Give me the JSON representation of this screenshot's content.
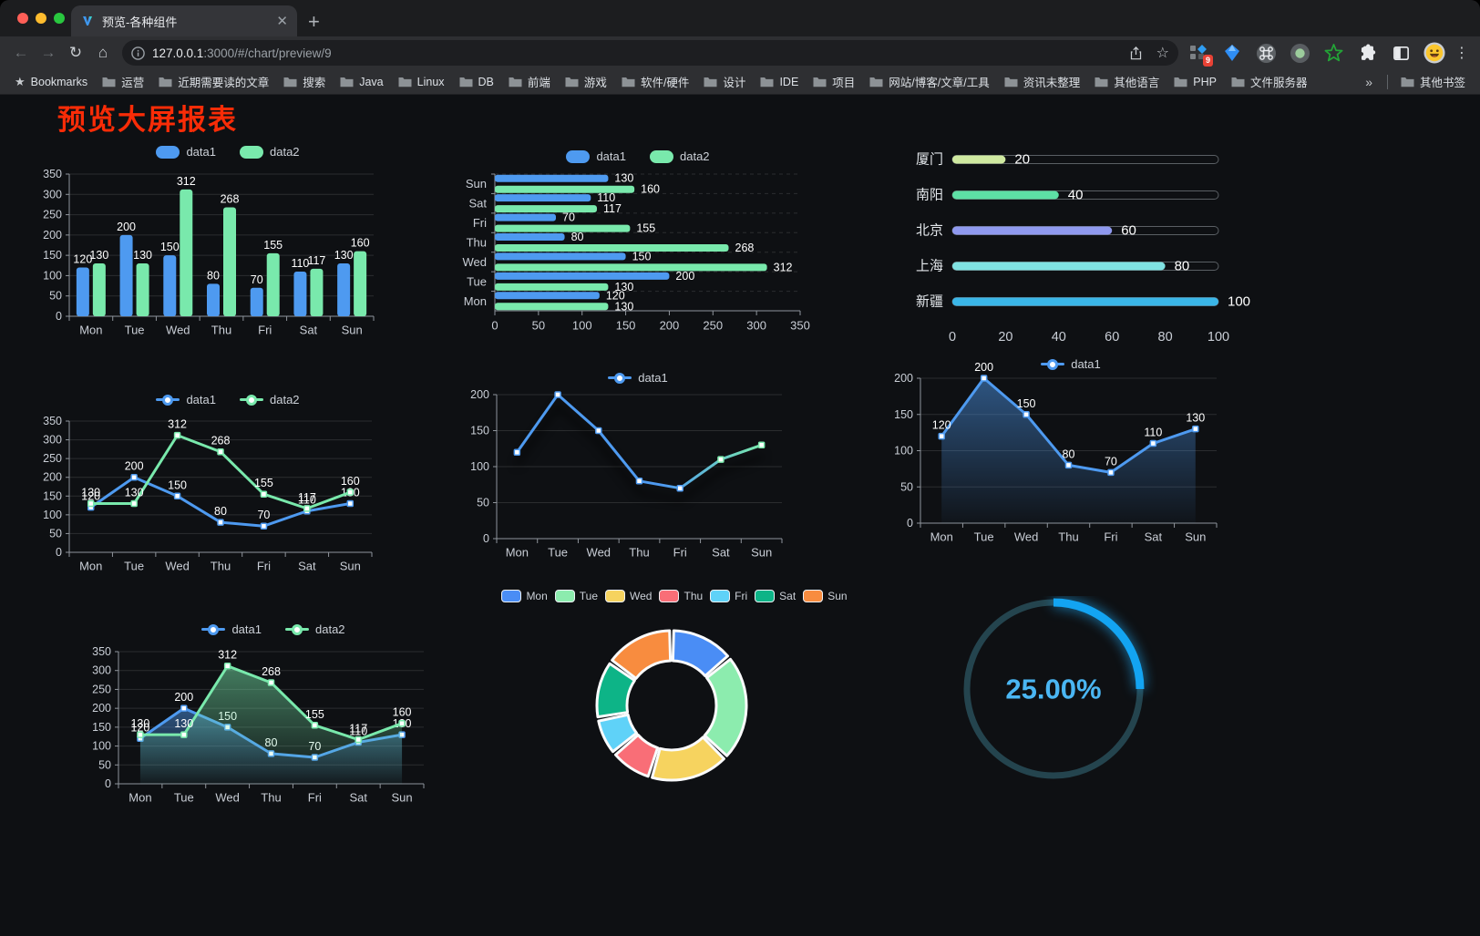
{
  "browser": {
    "tab_title": "预览-各种组件",
    "url_host": "127.0.0.1",
    "url_rest": ":3000/#/chart/preview/9",
    "bookmarks_label": "Bookmarks",
    "bookmarks": [
      "运营",
      "近期需要读的文章",
      "搜索",
      "Java",
      "Linux",
      "DB",
      "前端",
      "游戏",
      "软件/硬件",
      "设计",
      "IDE",
      "项目",
      "网站/博客/文章/工具",
      "资讯未整理",
      "其他语言",
      "PHP",
      "文件服务器"
    ],
    "overflow_chevron": "»",
    "other_bookmarks": "其他书签",
    "ext_badge": "9"
  },
  "page": {
    "title": "预览大屏报表",
    "title_color": "#f92c07"
  },
  "chart_data": [
    {
      "id": "bar-vertical",
      "type": "bar",
      "categories": [
        "Mon",
        "Tue",
        "Wed",
        "Thu",
        "Fri",
        "Sat",
        "Sun"
      ],
      "series": [
        {
          "name": "data1",
          "color": "#4e9af0",
          "values": [
            120,
            200,
            150,
            80,
            70,
            110,
            130
          ]
        },
        {
          "name": "data2",
          "color": "#79e9ac",
          "values": [
            130,
            130,
            312,
            268,
            155,
            117,
            160
          ]
        }
      ],
      "ylim": [
        0,
        350
      ],
      "ystep": 50,
      "legend_position": "top",
      "grid": true
    },
    {
      "id": "bar-horizontal",
      "type": "hbar",
      "categories": [
        "Mon",
        "Tue",
        "Wed",
        "Thu",
        "Fri",
        "Sat",
        "Sun"
      ],
      "row_order_top_to_bottom": [
        "Sun",
        "Sat",
        "Fri",
        "Thu",
        "Wed",
        "Tue",
        "Mon"
      ],
      "series": [
        {
          "name": "data1",
          "color": "#4e9af0",
          "values": [
            120,
            200,
            150,
            80,
            70,
            110,
            130
          ]
        },
        {
          "name": "data2",
          "color": "#79e9ac",
          "values": [
            130,
            130,
            312,
            268,
            155,
            117,
            160
          ]
        }
      ],
      "xlim": [
        0,
        350
      ],
      "xstep": 50,
      "legend_position": "top",
      "grid": true
    },
    {
      "id": "progress-bars",
      "type": "progress",
      "items": [
        {
          "label": "厦门",
          "value": 20,
          "color": "#cfe9a0"
        },
        {
          "label": "南阳",
          "value": 40,
          "color": "#5ddfa5"
        },
        {
          "label": "北京",
          "value": 60,
          "color": "#8f99ef"
        },
        {
          "label": "上海",
          "value": 80,
          "color": "#80e2e2"
        },
        {
          "label": "新疆",
          "value": 100,
          "color": "#3ab6e8"
        }
      ],
      "xlim": [
        0,
        100
      ],
      "xticks": [
        0,
        20,
        40,
        60,
        80,
        100
      ]
    },
    {
      "id": "line-two-series",
      "type": "line",
      "categories": [
        "Mon",
        "Tue",
        "Wed",
        "Thu",
        "Fri",
        "Sat",
        "Sun"
      ],
      "series": [
        {
          "name": "data1",
          "color": "#4e9af0",
          "values": [
            120,
            200,
            150,
            80,
            70,
            110,
            130
          ]
        },
        {
          "name": "data2",
          "color": "#79e9ac",
          "values": [
            130,
            130,
            312,
            268,
            155,
            117,
            160
          ]
        }
      ],
      "ylim": [
        0,
        350
      ],
      "ystep": 50,
      "labels": true,
      "legend_position": "top",
      "grid": true
    },
    {
      "id": "line-gradient",
      "type": "line",
      "categories": [
        "Mon",
        "Tue",
        "Wed",
        "Thu",
        "Fri",
        "Sat",
        "Sun"
      ],
      "series": [
        {
          "name": "data1",
          "gradient": [
            "#4e9af0",
            "#79e9ac"
          ],
          "values": [
            120,
            200,
            150,
            80,
            70,
            110,
            130
          ]
        }
      ],
      "ylim": [
        0,
        200
      ],
      "ystep": 50,
      "labels": false,
      "shadow": true,
      "legend_position": "top",
      "grid": true
    },
    {
      "id": "line-area-single",
      "type": "line",
      "categories": [
        "Mon",
        "Tue",
        "Wed",
        "Thu",
        "Fri",
        "Sat",
        "Sun"
      ],
      "series": [
        {
          "name": "data1",
          "color": "#4e9af0",
          "area": true,
          "values": [
            120,
            200,
            150,
            80,
            70,
            110,
            130
          ]
        }
      ],
      "ylim": [
        0,
        200
      ],
      "ystep": 50,
      "labels": true,
      "legend_position": "top",
      "grid": true
    },
    {
      "id": "line-area-two-series",
      "type": "line",
      "categories": [
        "Mon",
        "Tue",
        "Wed",
        "Thu",
        "Fri",
        "Sat",
        "Sun"
      ],
      "series": [
        {
          "name": "data1",
          "color": "#4e9af0",
          "area": true,
          "values": [
            120,
            200,
            150,
            80,
            70,
            110,
            130
          ]
        },
        {
          "name": "data2",
          "color": "#79e9ac",
          "area": true,
          "values": [
            130,
            130,
            312,
            268,
            155,
            117,
            160
          ]
        }
      ],
      "ylim": [
        0,
        350
      ],
      "ystep": 50,
      "labels": true,
      "legend_position": "top",
      "grid": true
    },
    {
      "id": "donut",
      "type": "pie",
      "categories": [
        "Mon",
        "Tue",
        "Wed",
        "Thu",
        "Fri",
        "Sat",
        "Sun"
      ],
      "values": [
        120,
        200,
        150,
        80,
        70,
        110,
        130
      ],
      "colors": [
        "#4a8df5",
        "#8cecae",
        "#f6d35f",
        "#f96e77",
        "#5fd2f8",
        "#0db487",
        "#f88c3f"
      ],
      "legend_position": "top",
      "inner_radius_ratio": 0.6
    },
    {
      "id": "gauge",
      "type": "gauge",
      "value": 25,
      "label": "25.00%",
      "color": "#13a4f2",
      "track_color": "#24444e",
      "text_color": "#4ab6f3"
    }
  ]
}
